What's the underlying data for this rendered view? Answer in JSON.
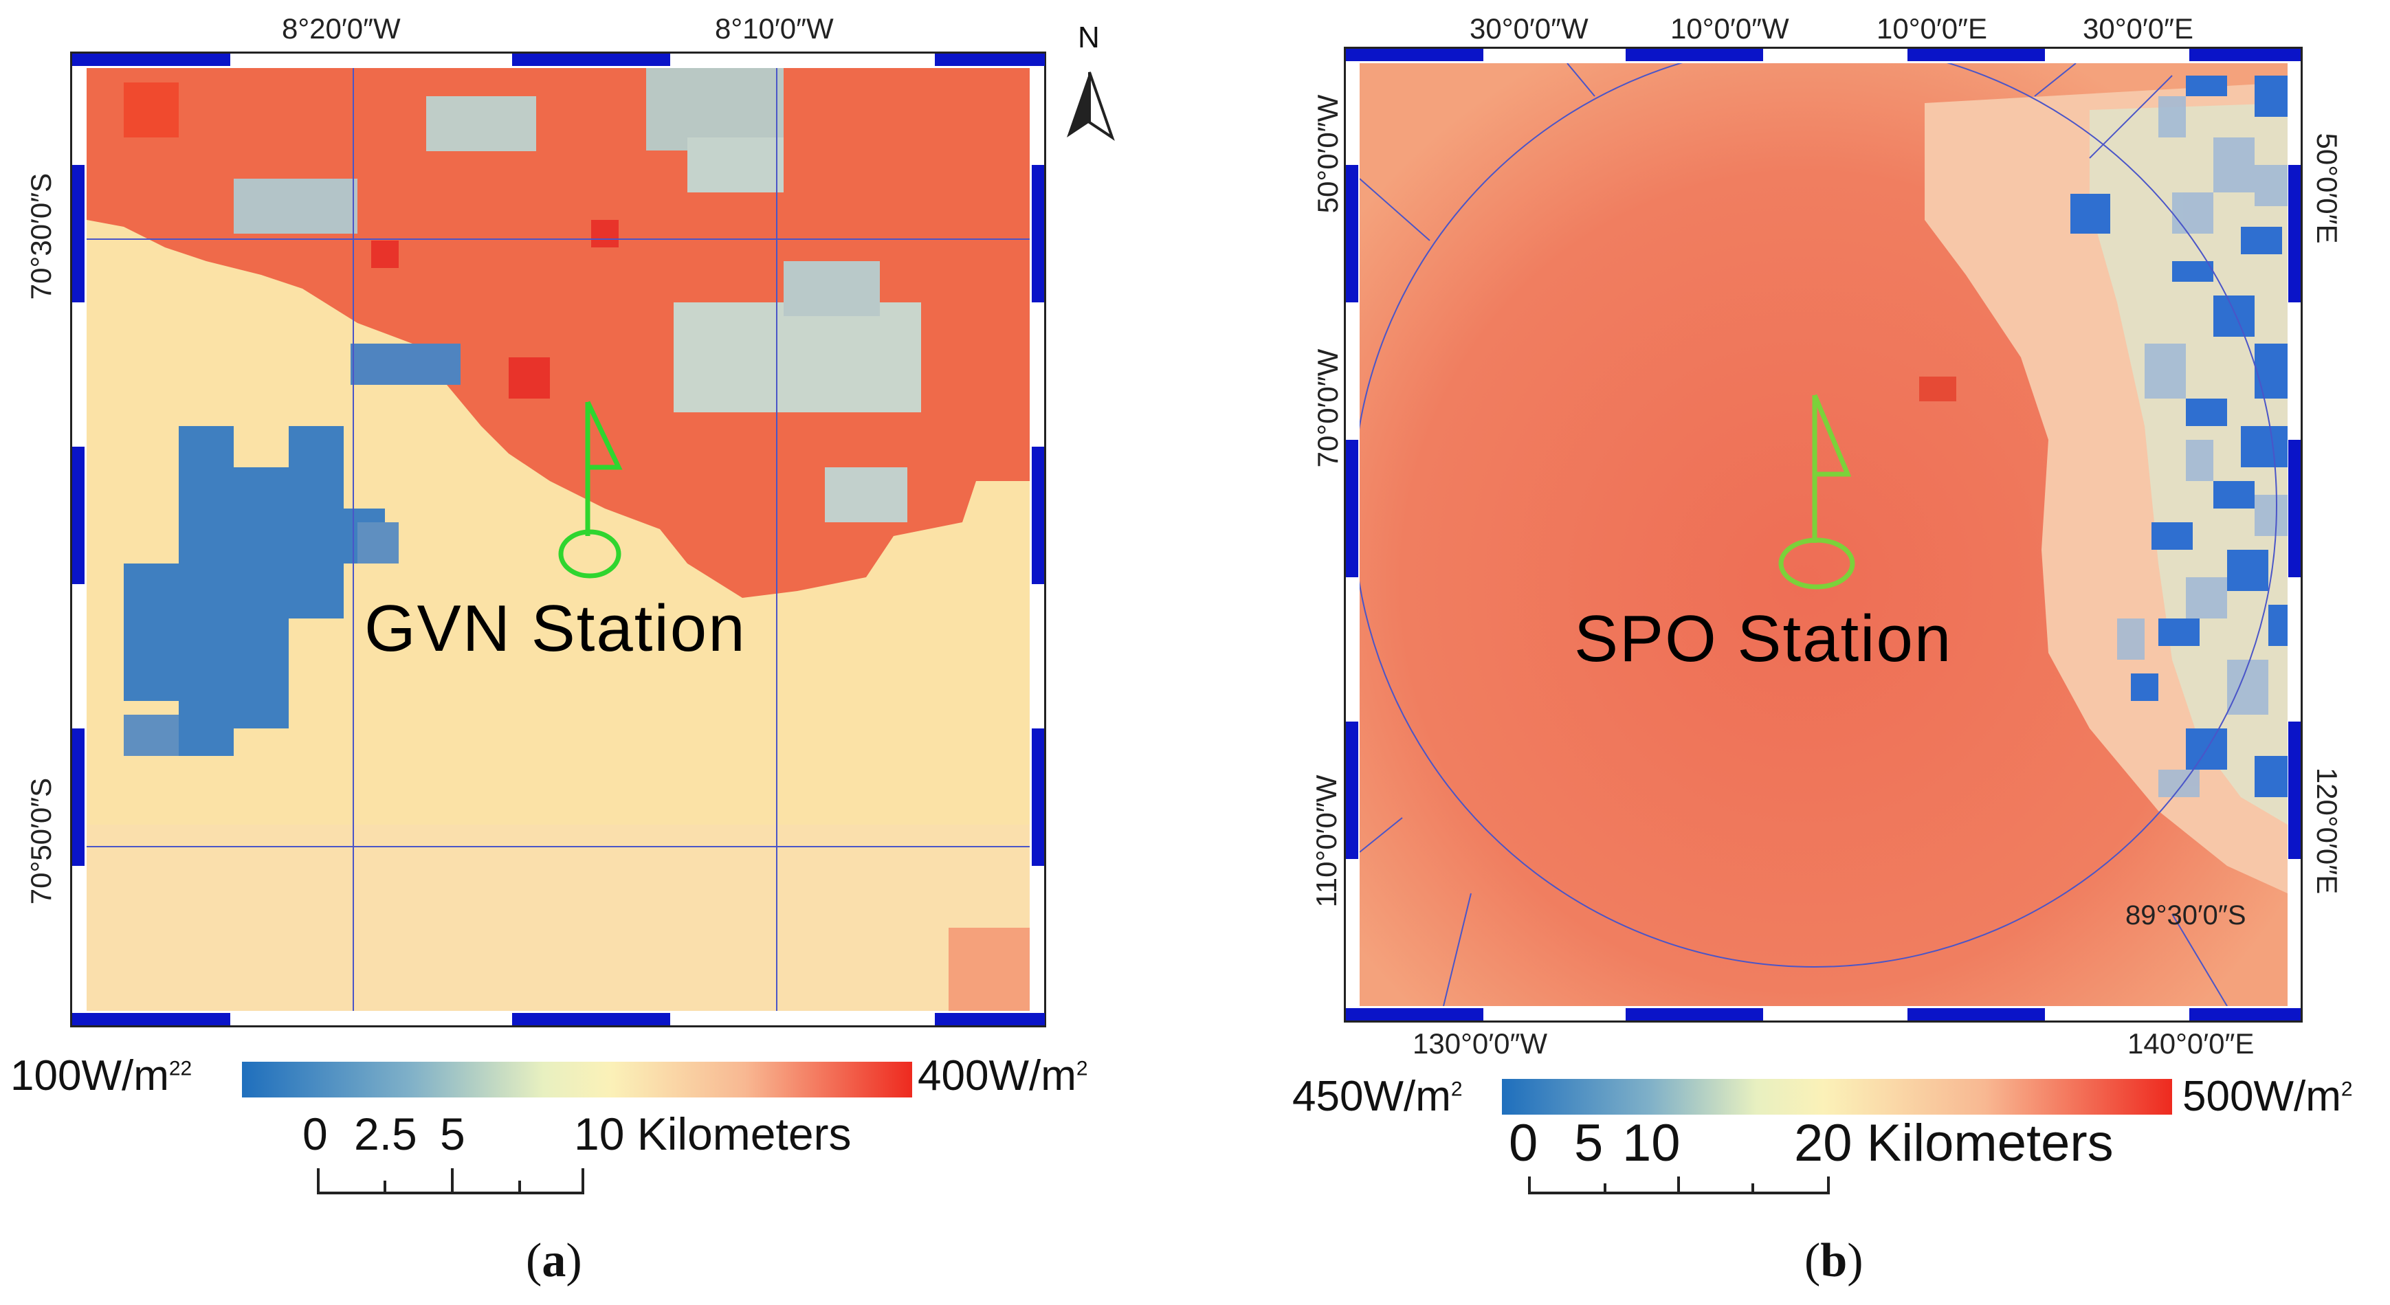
{
  "panel_a": {
    "top_labels": [
      "8°20′0″W",
      "8°10′0″W"
    ],
    "left_labels": [
      "70°30′0″S",
      "70°50′0″S"
    ],
    "north_label": "N",
    "station": "GVN Station",
    "legend_min": "100W/m",
    "legend_min_sup": "22",
    "legend_max": "400W/m",
    "legend_max_sup": "2",
    "scale_ticks": [
      "0",
      "2.5",
      "5",
      "10 Kilometers"
    ],
    "caption_open": "(",
    "caption_letter": "a",
    "caption_close": ")",
    "colors": {
      "low": "#1f6fbd",
      "mid": "#fbf1b8",
      "high": "#ee2a1f"
    }
  },
  "panel_b": {
    "top_labels": [
      "30°0′0″W",
      "10°0′0″W",
      "10°0′0″E",
      "30°0′0″E"
    ],
    "left_labels": [
      "50°0′0″W",
      "70°0′0″W",
      "110°0′0″W"
    ],
    "right_labels": [
      "50°0′0″E",
      "120°0′0″E"
    ],
    "bottom_labels": [
      "130°0′0″W",
      "140°0′0″E"
    ],
    "inner_label": "89°30′0″S",
    "station": "SPO Station",
    "legend_min": "450W/m",
    "legend_min_sup": "2",
    "legend_max": "500W/m",
    "legend_max_sup": "2",
    "scale_ticks": [
      "0",
      "5",
      "10",
      "20 Kilometers"
    ],
    "caption_open": "(",
    "caption_letter": "b",
    "caption_close": ")",
    "colors": {
      "low": "#1f6fbd",
      "mid": "#fbf1b8",
      "high": "#ee2a1f"
    }
  },
  "marker_color": "#2fd52f",
  "frame_color": "#0a14c8"
}
